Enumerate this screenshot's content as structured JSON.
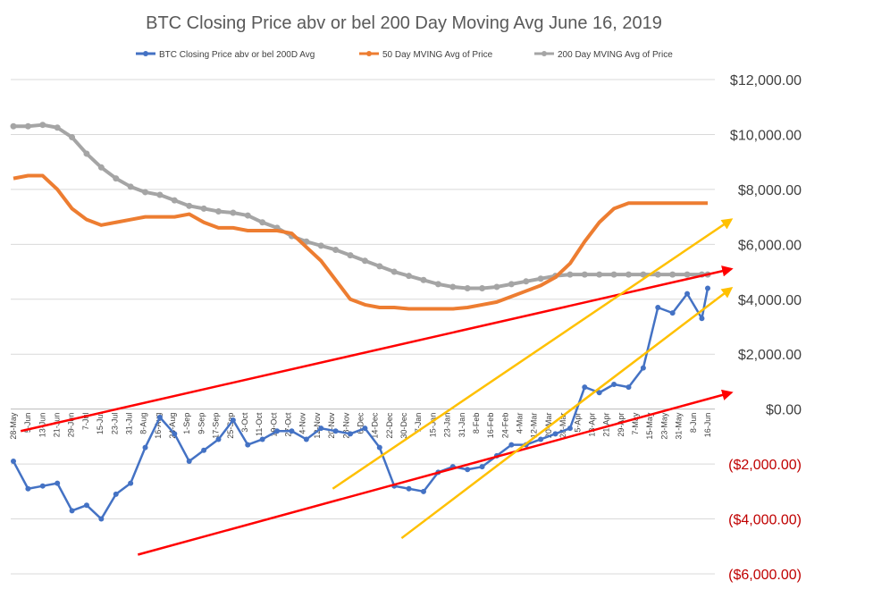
{
  "chart_data": {
    "type": "line",
    "title": "BTC Closing  Price abv or bel 200 Day Moving Avg June 16, 2019",
    "xlabel": "",
    "ylabel": "",
    "ylim": [
      -6000,
      12000
    ],
    "y_ticks": [
      12000,
      10000,
      8000,
      6000,
      4000,
      2000,
      0,
      -2000,
      -4000,
      -6000
    ],
    "y_tick_labels": [
      "$12,000.00",
      "$10,000.00",
      "$8,000.00",
      "$6,000.00",
      "$4,000.00",
      "$2,000.00",
      "$0.00",
      "($2,000.00)",
      "($4,000.00)",
      "($6,000.00)"
    ],
    "negative_tick_color": "#C00000",
    "positive_tick_color": "#404040",
    "grid": true,
    "legend_position": "top",
    "x_tick_labels": [
      "28-May",
      "5-Jun",
      "13-Jun",
      "21-Jun",
      "29-Jun",
      "7-Jul",
      "15-Jul",
      "23-Jul",
      "31-Jul",
      "8-Aug",
      "16-Aug",
      "24-Aug",
      "1-Sep",
      "9-Sep",
      "17-Sep",
      "25-Sep",
      "3-Oct",
      "11-Oct",
      "19-Oct",
      "27-Oct",
      "4-Nov",
      "12-Nov",
      "20-Nov",
      "28-Nov",
      "6-Dec",
      "14-Dec",
      "22-Dec",
      "30-Dec",
      "7-Jan",
      "15-Jan",
      "23-Jan",
      "31-Jan",
      "8-Feb",
      "16-Feb",
      "24-Feb",
      "4-Mar",
      "12-Mar",
      "20-Mar",
      "28-Mar",
      "5-Apr",
      "13-Apr",
      "21-Apr",
      "29-Apr",
      "7-May",
      "15-May",
      "23-May",
      "31-May",
      "8-Jun",
      "16-Jun"
    ],
    "series": [
      {
        "name": "BTC Closing  Price abv or bel 200D Avg",
        "color": "#4472C4",
        "marker": "circle",
        "x": [
          0,
          1,
          2,
          3,
          4,
          5,
          6,
          7,
          8,
          9,
          10,
          11,
          12,
          13,
          14,
          15,
          16,
          17,
          18,
          19,
          20,
          21,
          22,
          23,
          24,
          25,
          26,
          27,
          28,
          29,
          30,
          31,
          32,
          33,
          34,
          35,
          36,
          37,
          38,
          39,
          40,
          41,
          42,
          43,
          44,
          45,
          46,
          47,
          47.4
        ],
        "values": [
          -1900,
          -2900,
          -2800,
          -2700,
          -3700,
          -3500,
          -4000,
          -3100,
          -2700,
          -1400,
          -300,
          -900,
          -1900,
          -1500,
          -1100,
          -400,
          -1300,
          -1100,
          -800,
          -800,
          -1100,
          -700,
          -800,
          -900,
          -700,
          -1400,
          -2800,
          -2900,
          -3000,
          -2300,
          -2100,
          -2200,
          -2100,
          -1700,
          -1300,
          -1300,
          -1100,
          -900,
          -700,
          800,
          600,
          900,
          800,
          1500,
          3700,
          3500,
          4200,
          3300,
          4400
        ]
      },
      {
        "name": "50 Day MVING Avg of  Price",
        "color": "#ED7D31",
        "marker": "none",
        "x": [
          0,
          1,
          2,
          3,
          4,
          5,
          6,
          7,
          8,
          9,
          10,
          11,
          12,
          13,
          14,
          15,
          16,
          17,
          18,
          19,
          20,
          21,
          22,
          23,
          24,
          25,
          26,
          27,
          28,
          29,
          30,
          31,
          32,
          33,
          34,
          35,
          36,
          37,
          38,
          39,
          40,
          41,
          42,
          43,
          44,
          45,
          46,
          47,
          47.4
        ],
        "values": [
          8400,
          8500,
          8500,
          8000,
          7300,
          6900,
          6700,
          6800,
          6900,
          7000,
          7000,
          7000,
          7100,
          6800,
          6600,
          6600,
          6500,
          6500,
          6500,
          6400,
          5900,
          5400,
          4700,
          4000,
          3800,
          3700,
          3700,
          3650,
          3650,
          3650,
          3650,
          3700,
          3800,
          3900,
          4100,
          4300,
          4500,
          4800,
          5300,
          6100,
          6800,
          7300,
          7500,
          7500,
          7500,
          7500,
          7500,
          7500,
          7500
        ]
      },
      {
        "name": "200 Day MVING Avg of  Price",
        "color": "#A5A5A5",
        "marker": "circle",
        "x": [
          0,
          1,
          2,
          3,
          4,
          5,
          6,
          7,
          8,
          9,
          10,
          11,
          12,
          13,
          14,
          15,
          16,
          17,
          18,
          19,
          20,
          21,
          22,
          23,
          24,
          25,
          26,
          27,
          28,
          29,
          30,
          31,
          32,
          33,
          34,
          35,
          36,
          37,
          38,
          39,
          40,
          41,
          42,
          43,
          44,
          45,
          46,
          47,
          47.4
        ],
        "values": [
          10300,
          10300,
          10350,
          10250,
          9900,
          9300,
          8800,
          8400,
          8100,
          7900,
          7800,
          7600,
          7400,
          7300,
          7200,
          7150,
          7050,
          6800,
          6600,
          6300,
          6100,
          5950,
          5800,
          5600,
          5400,
          5200,
          5000,
          4850,
          4700,
          4550,
          4450,
          4400,
          4400,
          4450,
          4550,
          4650,
          4750,
          4850,
          4900,
          4900,
          4900,
          4900,
          4900,
          4900,
          4900,
          4900,
          4900,
          4900,
          4900
        ]
      }
    ],
    "annotations": [
      {
        "type": "trend-arrow",
        "color": "#FF0000",
        "from": [
          0.5,
          -800
        ],
        "to": [
          49,
          5100
        ]
      },
      {
        "type": "trend-arrow",
        "color": "#FF0000",
        "from": [
          8.5,
          -5300
        ],
        "to": [
          49,
          600
        ]
      },
      {
        "type": "trend-arrow",
        "color": "#FFC000",
        "from": [
          21.8,
          -2900
        ],
        "to": [
          49,
          6900
        ]
      },
      {
        "type": "trend-arrow",
        "color": "#FFC000",
        "from": [
          26.5,
          -4700
        ],
        "to": [
          49,
          4400
        ]
      }
    ]
  }
}
